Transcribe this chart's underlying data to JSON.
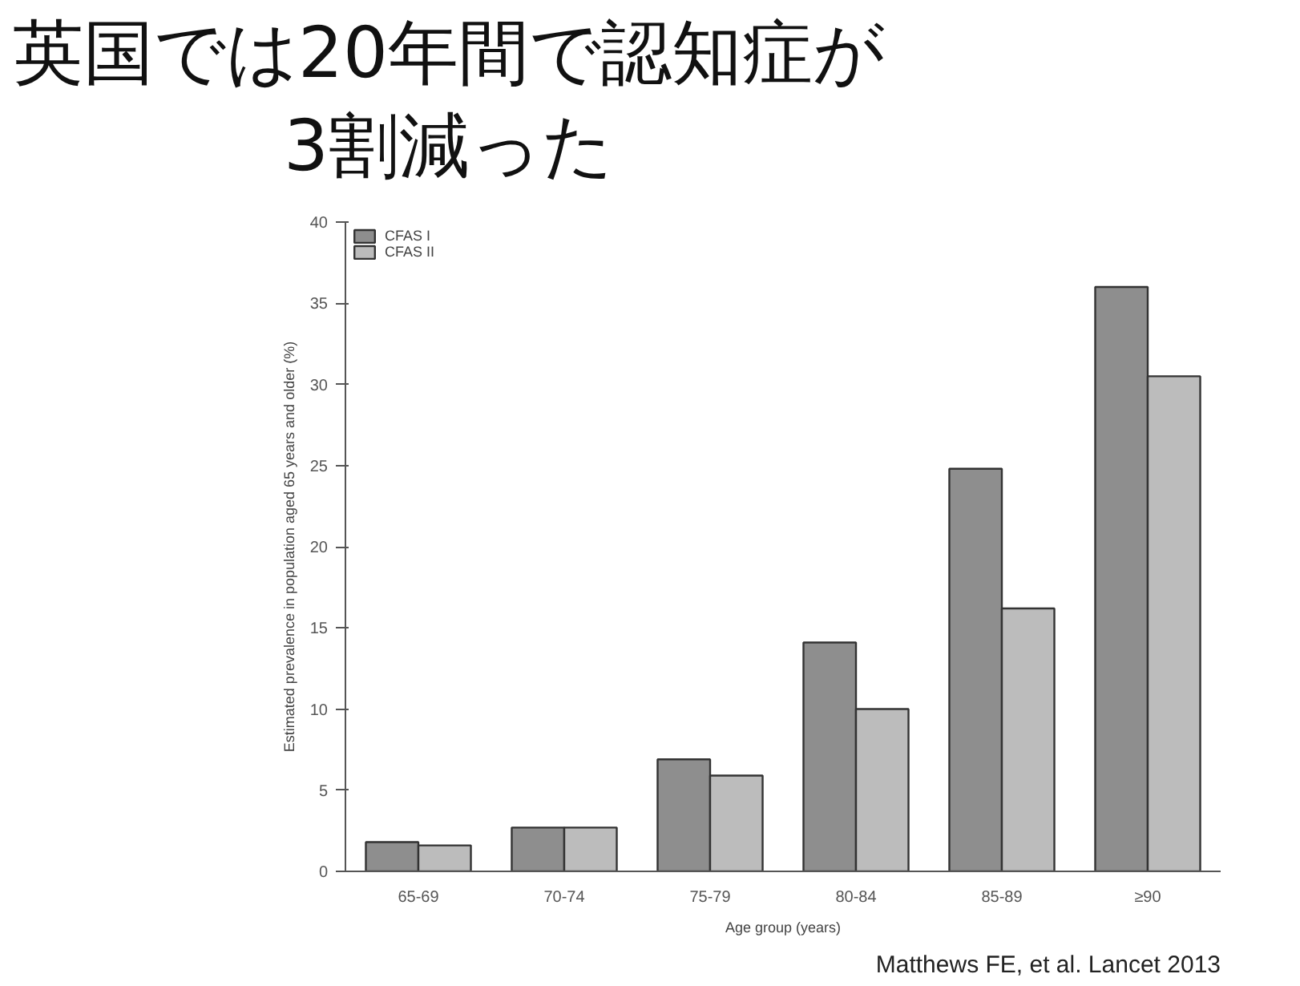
{
  "chart_data": {
    "type": "bar",
    "title": "英国では20年間で認知症が3割減った",
    "xlabel": "Age group (years)",
    "ylabel": "Estimated prevalence in population aged 65 years and older (%)",
    "categories": [
      "65-69",
      "70-74",
      "75-79",
      "80-84",
      "85-89",
      "≥90"
    ],
    "series": [
      {
        "name": "CFAS I",
        "color": "#8e8e8e",
        "values": [
          1.8,
          2.7,
          6.9,
          14.1,
          24.8,
          36.0
        ]
      },
      {
        "name": "CFAS II",
        "color": "#bcbcbc",
        "values": [
          1.6,
          2.7,
          5.9,
          10.0,
          16.2,
          30.5
        ]
      }
    ],
    "ylim": [
      0,
      40
    ],
    "yticks": [
      0,
      5,
      10,
      15,
      20,
      25,
      30,
      35,
      40
    ],
    "grid": false,
    "legend": "top left",
    "annotations": [
      "Matthews FE, et al. Lancet 2013"
    ]
  }
}
